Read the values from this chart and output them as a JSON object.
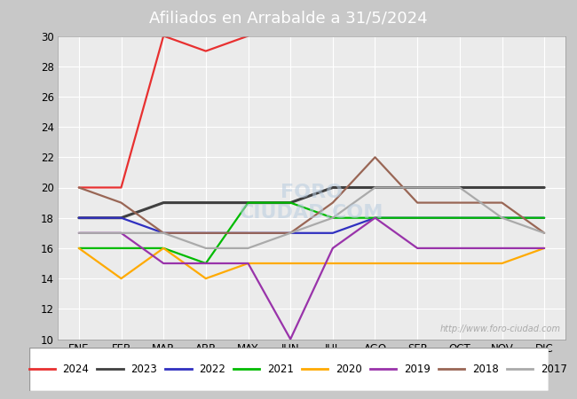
{
  "title": "Afiliados en Arrabalde a 31/5/2024",
  "ylim": [
    10,
    30
  ],
  "yticks": [
    10,
    12,
    14,
    16,
    18,
    20,
    22,
    24,
    26,
    28,
    30
  ],
  "months": [
    "ENE",
    "FEB",
    "MAR",
    "ABR",
    "MAY",
    "JUN",
    "JUL",
    "AGO",
    "SEP",
    "OCT",
    "NOV",
    "DIC"
  ],
  "watermark": "http://www.foro-ciudad.com",
  "header_color": "#5b9bd5",
  "fig_bg_color": "#c8c8c8",
  "plot_bg_color": "#ebebeb",
  "grid_color": "#ffffff",
  "series": {
    "2024": {
      "color": "#e83030",
      "data": [
        20,
        20,
        30,
        29,
        30,
        null,
        null,
        null,
        null,
        null,
        null,
        null
      ]
    },
    "2023": {
      "color": "#404040",
      "data": [
        18,
        18,
        19,
        19,
        19,
        19,
        20,
        20,
        20,
        20,
        20,
        20
      ]
    },
    "2022": {
      "color": "#3030c0",
      "data": [
        18,
        18,
        17,
        17,
        17,
        17,
        17,
        18,
        18,
        18,
        18,
        18
      ]
    },
    "2021": {
      "color": "#00bb00",
      "data": [
        16,
        16,
        16,
        15,
        19,
        19,
        18,
        18,
        18,
        18,
        18,
        18
      ]
    },
    "2020": {
      "color": "#ffaa00",
      "data": [
        16,
        14,
        16,
        14,
        15,
        15,
        15,
        15,
        15,
        15,
        15,
        16
      ]
    },
    "2019": {
      "color": "#9933aa",
      "data": [
        17,
        17,
        15,
        15,
        15,
        10,
        16,
        18,
        16,
        16,
        16,
        16
      ]
    },
    "2018": {
      "color": "#996655",
      "data": [
        20,
        19,
        17,
        17,
        17,
        17,
        19,
        22,
        19,
        19,
        19,
        17
      ]
    },
    "2017": {
      "color": "#aaaaaa",
      "data": [
        17,
        17,
        17,
        16,
        16,
        17,
        18,
        20,
        20,
        20,
        18,
        17
      ]
    }
  },
  "legend_order": [
    "2024",
    "2023",
    "2022",
    "2021",
    "2020",
    "2019",
    "2018",
    "2017"
  ]
}
